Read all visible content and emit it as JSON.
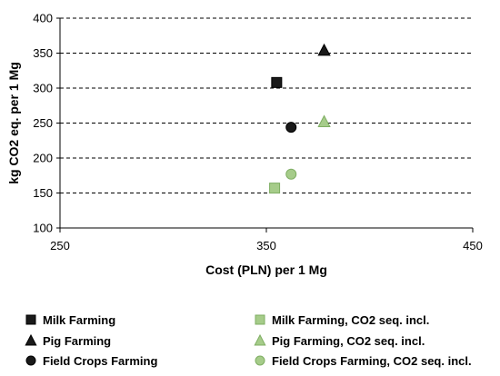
{
  "chart_data": {
    "type": "scatter",
    "xlabel": "Cost (PLN) per 1 Mg",
    "ylabel": "kg CO2 eq. per 1 Mg",
    "xlim": [
      250,
      450
    ],
    "ylim": [
      100,
      400
    ],
    "x_ticks": [
      250,
      350,
      450
    ],
    "y_ticks": [
      100,
      150,
      200,
      250,
      300,
      350,
      400
    ],
    "grid": "horizontal dashed",
    "legend_position": "bottom",
    "series": [
      {
        "name": "Milk Farming",
        "marker": "square",
        "color": "#1a1a1a",
        "x": [
          355
        ],
        "y": [
          308
        ]
      },
      {
        "name": "Pig Farming",
        "marker": "triangle",
        "color": "#1a1a1a",
        "x": [
          378
        ],
        "y": [
          354
        ]
      },
      {
        "name": "Field Crops Farming",
        "marker": "circle",
        "color": "#1a1a1a",
        "x": [
          362
        ],
        "y": [
          244
        ]
      },
      {
        "name": "Milk Farming, CO2 seq. incl.",
        "marker": "square",
        "color": "#a6cc8a",
        "x": [
          354
        ],
        "y": [
          157
        ]
      },
      {
        "name": "Pig Farming, CO2 seq. incl.",
        "marker": "triangle",
        "color": "#a6cc8a",
        "x": [
          378
        ],
        "y": [
          252
        ]
      },
      {
        "name": "Field Crops Farming, CO2 seq. incl.",
        "marker": "circle",
        "color": "#a6cc8a",
        "x": [
          362
        ],
        "y": [
          177
        ]
      }
    ]
  }
}
